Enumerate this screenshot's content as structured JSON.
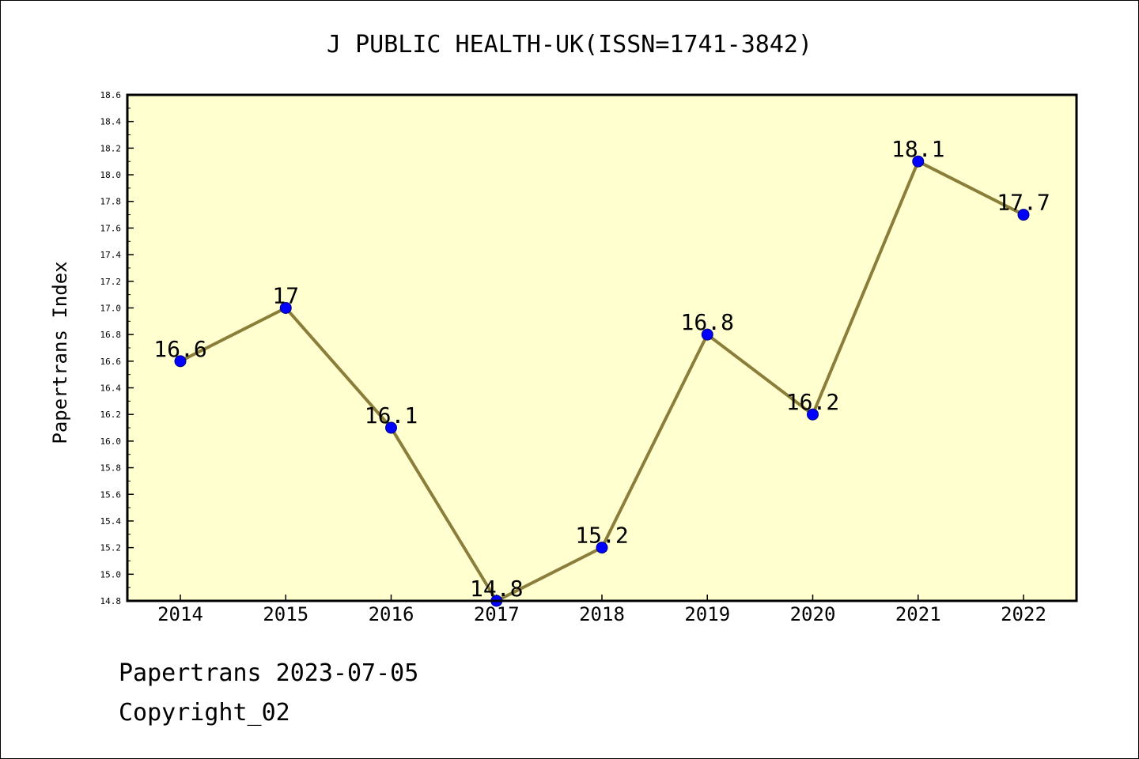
{
  "chart_data": {
    "type": "line",
    "title": "J PUBLIC HEALTH-UK(ISSN=1741-3842)",
    "xlabel": "",
    "ylabel": "Papertrans Index",
    "categories": [
      "2014",
      "2015",
      "2016",
      "2017",
      "2018",
      "2019",
      "2020",
      "2021",
      "2022"
    ],
    "values": [
      16.6,
      17.0,
      16.1,
      14.8,
      15.2,
      16.8,
      16.2,
      18.1,
      17.7
    ],
    "data_labels": [
      "16.6",
      "17",
      "16.1",
      "14.8",
      "15.2",
      "16.8",
      "16.2",
      "18.1",
      "17.7"
    ],
    "ylim": [
      14.8,
      18.6
    ],
    "yticks": [
      "14.8",
      "15.0",
      "15.2",
      "15.4",
      "15.6",
      "15.8",
      "16.0",
      "16.2",
      "16.4",
      "16.6",
      "16.8",
      "17.0",
      "17.2",
      "17.4",
      "17.6",
      "17.8",
      "18.0",
      "18.2",
      "18.4",
      "18.6"
    ],
    "grid": false,
    "legend": "none",
    "colors": {
      "plot_background": "#ffffd0",
      "line": "#8b7d3a",
      "marker": "#0000ff",
      "marker_edge": "#000080"
    }
  },
  "footer": {
    "date_line": "Papertrans 2023-07-05",
    "copyright": "Copyright_02"
  }
}
